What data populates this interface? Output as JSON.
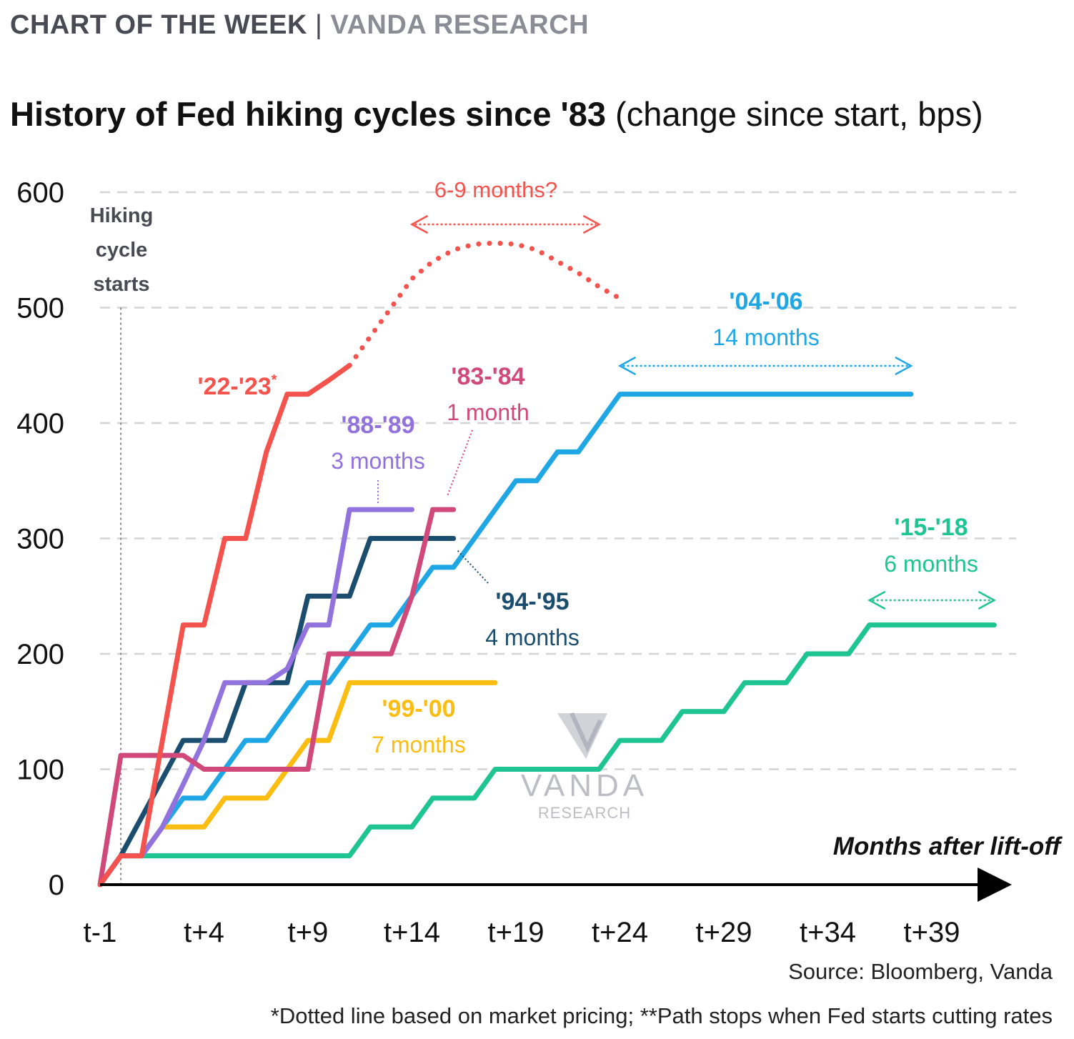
{
  "header": {
    "brand_left": "CHART OF THE WEEK",
    "brand_sep": "|",
    "brand_right": "VANDA RESEARCH",
    "title_bold": "History of Fed hiking cycles since '83",
    "title_rest": "(change since start, bps)"
  },
  "footer": {
    "source": "Source: Bloomberg, Vanda",
    "footnote": "*Dotted line based on market pricing; **Path stops when Fed starts cutting rates"
  },
  "watermark": {
    "line1": "VANDA",
    "line2": "RESEARCH"
  },
  "chart_data": {
    "type": "line",
    "title": "History of Fed hiking cycles since '83 (change since start, bps)",
    "xlabel": "Months after lift-off",
    "ylabel": "",
    "ylim": [
      0,
      600
    ],
    "yticks": [
      0,
      100,
      200,
      300,
      400,
      500,
      600
    ],
    "ytick_labels": [
      "0",
      "100",
      "200",
      "300",
      "400",
      "500",
      "600"
    ],
    "xlim": [
      -1,
      43
    ],
    "xticks": [
      -1,
      4,
      9,
      14,
      19,
      24,
      29,
      34,
      39
    ],
    "xtick_labels": [
      "t-1",
      "t+4",
      "t+9",
      "t+14",
      "t+19",
      "t+24",
      "t+29",
      "t+34",
      "t+39"
    ],
    "grid": true,
    "start_marker": {
      "x": 0,
      "label_lines": [
        "Hiking",
        "cycle",
        "starts"
      ]
    },
    "series": [
      {
        "name": "'15-'18",
        "label": "'15-'18",
        "sublabel": "6 months",
        "color": "#1fc493",
        "x": [
          -1,
          0,
          1,
          11,
          12,
          13,
          14,
          15,
          16,
          17,
          18,
          19,
          20,
          21,
          22,
          23,
          24,
          25,
          26,
          27,
          28,
          29,
          30,
          31,
          32,
          33,
          34,
          35,
          36,
          37,
          42
        ],
        "y": [
          0,
          25,
          25,
          25,
          50,
          50,
          50,
          75,
          75,
          75,
          100,
          100,
          100,
          100,
          100,
          100,
          125,
          125,
          125,
          150,
          150,
          150,
          175,
          175,
          175,
          200,
          200,
          200,
          225,
          225,
          225
        ]
      },
      {
        "name": "'04-'06",
        "label": "'04-'06",
        "sublabel": "14 months",
        "color": "#1ea7e4",
        "x": [
          -1,
          0,
          1,
          2,
          3,
          4,
          5,
          6,
          7,
          8,
          9,
          10,
          11,
          12,
          13,
          14,
          15,
          16,
          17,
          18,
          19,
          20,
          21,
          22,
          23,
          24,
          38
        ],
        "y": [
          0,
          25,
          25,
          50,
          75,
          75,
          100,
          125,
          125,
          150,
          175,
          175,
          200,
          225,
          225,
          250,
          275,
          275,
          300,
          325,
          350,
          350,
          375,
          375,
          400,
          425,
          425
        ]
      },
      {
        "name": "'99-'00",
        "label": "'99-'00",
        "sublabel": "7 months",
        "color": "#fbbd12",
        "x": [
          -1,
          0,
          1,
          2,
          3,
          4,
          5,
          6,
          7,
          8,
          9,
          10,
          11,
          18
        ],
        "y": [
          0,
          25,
          25,
          50,
          50,
          50,
          75,
          75,
          75,
          100,
          125,
          125,
          175,
          175
        ]
      },
      {
        "name": "'94-'95",
        "label": "'94-'95",
        "sublabel": "4 months",
        "color": "#1b4e6e",
        "x": [
          -1,
          0,
          3,
          4,
          5,
          6,
          7,
          8,
          9,
          10,
          11,
          12,
          13,
          14,
          15,
          16
        ],
        "y": [
          0,
          25,
          125,
          125,
          125,
          175,
          175,
          175,
          250,
          250,
          250,
          300,
          300,
          300,
          300,
          300
        ]
      },
      {
        "name": "'88-'89",
        "label": "'88-'89",
        "sublabel": "3 months",
        "color": "#9273dd",
        "x": [
          -1,
          0,
          1,
          2,
          3,
          4,
          5,
          6,
          7,
          8,
          9,
          10,
          11,
          12,
          13,
          14
        ],
        "y": [
          0,
          25,
          25,
          50,
          87,
          125,
          175,
          175,
          175,
          187,
          225,
          225,
          325,
          325,
          325,
          325
        ]
      },
      {
        "name": "'83-'84",
        "label": "'83-'84",
        "sublabel": "1 month",
        "color": "#d0497a",
        "x": [
          -1,
          0,
          1,
          2,
          3,
          4,
          5,
          6,
          7,
          8,
          9,
          10,
          11,
          12,
          13,
          14,
          15,
          16
        ],
        "y": [
          0,
          112,
          112,
          112,
          112,
          100,
          100,
          100,
          100,
          100,
          100,
          200,
          200,
          200,
          200,
          250,
          325,
          325
        ]
      },
      {
        "name": "'22-'23",
        "label": "'22-'23",
        "label_mark": "*",
        "sublabel": "",
        "color": "#f4524d",
        "x": [
          -1,
          0,
          1,
          2,
          3,
          4,
          5,
          6,
          7,
          8,
          9,
          10,
          11
        ],
        "y": [
          0,
          25,
          25,
          125,
          225,
          225,
          300,
          300,
          375,
          425,
          425,
          437,
          450
        ],
        "projection": {
          "x": [
            11,
            12,
            13,
            14,
            15,
            16,
            17,
            18,
            19,
            20,
            21,
            22,
            23,
            24
          ],
          "y": [
            450,
            475,
            500,
            525,
            540,
            550,
            555,
            556,
            555,
            550,
            540,
            530,
            518,
            508
          ]
        }
      }
    ],
    "annotations": [
      {
        "text": "6-9 months?",
        "color": "#f4524d",
        "arrow_x": [
          14,
          23
        ]
      },
      {
        "text": "14 months",
        "color": "#1ea7e4",
        "arrow_x": [
          24,
          38
        ]
      },
      {
        "text": "6 months",
        "color": "#1fc493",
        "arrow_x": [
          36,
          42
        ]
      }
    ]
  }
}
